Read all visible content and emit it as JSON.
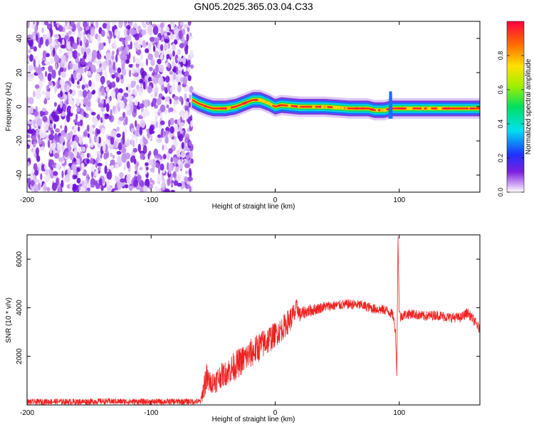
{
  "title": "GN05.2025.365.03.04.C33",
  "chart_data": [
    {
      "type": "heatmap",
      "xlabel": "Height of straight line (km)",
      "ylabel": "Frequency (Hz)",
      "xlim": [
        -200,
        165
      ],
      "ylim": [
        -50,
        50
      ],
      "x_ticks": [
        -200,
        -100,
        0,
        100
      ],
      "x_tick_labels": [
        "-200",
        "-100",
        "0",
        "100"
      ],
      "y_ticks": [
        40,
        20,
        0,
        -20,
        -40
      ],
      "y_tick_labels": [
        "40",
        "20",
        "0",
        "-20",
        "-40"
      ],
      "noise_region_km": [
        -200,
        -67
      ],
      "signal_start_km": -67,
      "ridge": {
        "x": [
          -67,
          -62,
          -55,
          -50,
          -40,
          -32,
          -25,
          -18,
          -12,
          -5,
          0,
          5,
          20,
          40,
          60,
          75,
          80,
          88,
          93,
          96,
          100,
          120,
          140,
          165
        ],
        "freq": [
          4,
          2,
          0,
          -1,
          -1,
          0,
          2,
          4,
          4,
          2,
          0,
          1,
          0,
          0,
          -1,
          -1,
          -2,
          -2,
          -1,
          -1,
          -1,
          -1,
          -1,
          -1
        ]
      },
      "colorbar": {
        "label": "Normalized spectral amplitude",
        "range": [
          0,
          1
        ],
        "ticks": [
          0.0,
          0.2,
          0.4,
          0.6,
          0.8
        ],
        "tick_labels": [
          "0.0",
          "0.2",
          "0.4",
          "0.6",
          "0.8"
        ]
      }
    },
    {
      "type": "line",
      "xlabel": "Height of straight line (km)",
      "ylabel": "SNR (10 * v/v)",
      "xlim": [
        -200,
        165
      ],
      "ylim": [
        0,
        7000
      ],
      "x_ticks": [
        -200,
        -100,
        0,
        100
      ],
      "x_tick_labels": [
        "-200",
        "-100",
        "0",
        "100"
      ],
      "y_ticks": [
        2000,
        4000,
        6000
      ],
      "y_tick_labels": [
        "2000",
        "4000",
        "6000"
      ],
      "series": [
        {
          "name": "SNR",
          "color": "#ee2222",
          "x": [
            -200,
            -180,
            -160,
            -140,
            -120,
            -100,
            -80,
            -60,
            -56,
            -52,
            -48,
            -44,
            -40,
            -35,
            -30,
            -25,
            -20,
            -15,
            -10,
            -5,
            0,
            5,
            10,
            15,
            18,
            20,
            25,
            30,
            40,
            50,
            60,
            70,
            80,
            90,
            95,
            97,
            98,
            99,
            100,
            101,
            103,
            110,
            120,
            130,
            140,
            150,
            155,
            160,
            165
          ],
          "y": [
            120,
            140,
            130,
            150,
            140,
            130,
            140,
            140,
            1100,
            900,
            1000,
            1200,
            1300,
            1500,
            1700,
            1900,
            2100,
            2300,
            2500,
            2700,
            2900,
            3100,
            3400,
            3700,
            4000,
            3700,
            3850,
            3900,
            4050,
            4100,
            4150,
            4100,
            3950,
            3900,
            3700,
            3000,
            1200,
            6900,
            3900,
            3600,
            3700,
            3750,
            3650,
            3700,
            3600,
            3600,
            3800,
            3500,
            3100
          ],
          "noise": [
            120,
            120,
            120,
            120,
            120,
            120,
            120,
            120,
            700,
            400,
            500,
            500,
            500,
            600,
            600,
            600,
            600,
            600,
            600,
            600,
            500,
            500,
            500,
            500,
            400,
            300,
            250,
            250,
            200,
            200,
            200,
            200,
            200,
            200,
            200,
            200,
            0,
            0,
            200,
            200,
            200,
            200,
            200,
            200,
            200,
            200,
            200,
            200,
            200
          ]
        }
      ]
    }
  ]
}
